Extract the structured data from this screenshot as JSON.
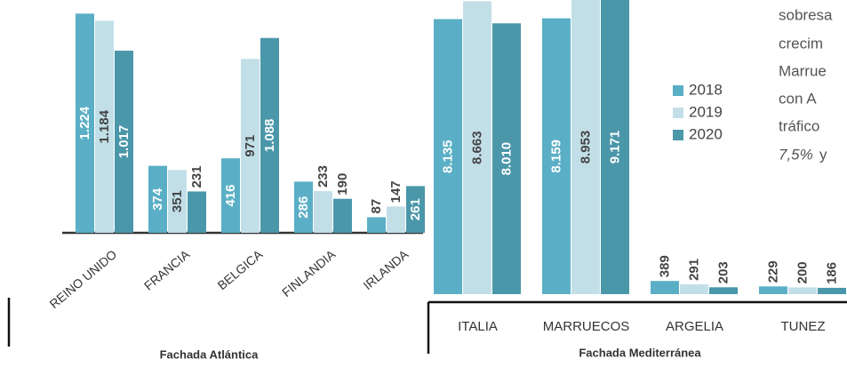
{
  "chart_data": [
    {
      "type": "bar",
      "title": "Fachada Atlántica",
      "categories": [
        "REINO UNIDO",
        "FRANCIA",
        "BELGICA",
        "FINLANDIA",
        "IRLANDA"
      ],
      "series": [
        {
          "color": "#5aafc6",
          "values": [
            1224,
            374,
            416,
            286,
            87
          ],
          "value_labels": [
            "1.224",
            "374",
            "416",
            "286",
            "87"
          ]
        },
        {
          "color": "#c2dfe8",
          "values": [
            1184,
            351,
            971,
            233,
            147
          ],
          "value_labels": [
            "1.184",
            "351",
            "971",
            "233",
            "147"
          ]
        },
        {
          "color": "#4b97aa",
          "values": [
            1017,
            231,
            1088,
            190,
            261
          ],
          "value_labels": [
            "1.017",
            "231",
            "1.088",
            "190",
            "261"
          ]
        }
      ],
      "ylim": [
        0,
        1300
      ]
    },
    {
      "type": "bar",
      "title": "Fachada Mediterránea",
      "categories": [
        "ITALIA",
        "MARRUECOS",
        "ARGELIA",
        "TUNEZ"
      ],
      "series": [
        {
          "name": "2018",
          "color": "#5aafc6",
          "values": [
            8135,
            8159,
            389,
            229
          ],
          "value_labels": [
            "8.135",
            "8.159",
            "389",
            "229"
          ]
        },
        {
          "name": "2019",
          "color": "#c2dfe8",
          "values": [
            8663,
            8953,
            291,
            200
          ],
          "value_labels": [
            "8.663",
            "8.953",
            "291",
            "200"
          ]
        },
        {
          "name": "2020",
          "color": "#4b97aa",
          "values": [
            8010,
            9171,
            203,
            186
          ],
          "value_labels": [
            "8.010",
            "9.171",
            "203",
            "186"
          ]
        }
      ],
      "ylim": [
        0,
        8700
      ]
    }
  ],
  "text": {
    "lines": [
      "sobresa",
      "crecim",
      "Marrue",
      "con A",
      "tráfico"
    ],
    "last_italic": "7,5%",
    "last_rest": "y"
  }
}
